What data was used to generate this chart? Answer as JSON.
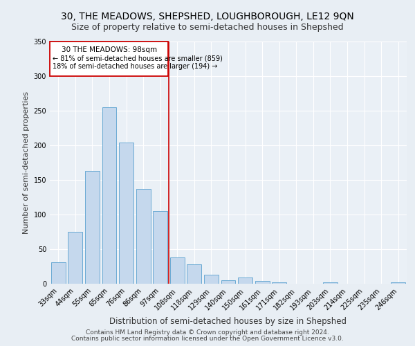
{
  "title": "30, THE MEADOWS, SHEPSHED, LOUGHBOROUGH, LE12 9QN",
  "subtitle": "Size of property relative to semi-detached houses in Shepshed",
  "xlabel": "Distribution of semi-detached houses by size in Shepshed",
  "ylabel": "Number of semi-detached properties",
  "categories": [
    "33sqm",
    "44sqm",
    "55sqm",
    "65sqm",
    "76sqm",
    "86sqm",
    "97sqm",
    "108sqm",
    "118sqm",
    "129sqm",
    "140sqm",
    "150sqm",
    "161sqm",
    "171sqm",
    "182sqm",
    "193sqm",
    "203sqm",
    "214sqm",
    "225sqm",
    "235sqm",
    "246sqm"
  ],
  "values": [
    31,
    75,
    163,
    255,
    204,
    137,
    105,
    38,
    28,
    13,
    5,
    9,
    4,
    2,
    0,
    0,
    2,
    0,
    0,
    0,
    2
  ],
  "bar_color": "#c5d8ed",
  "bar_edge_color": "#6aaad4",
  "vline_index": 6,
  "vline_color": "#cc0000",
  "property_label": "30 THE MEADOWS: 98sqm",
  "annotation_smaller": "← 81% of semi-detached houses are smaller (859)",
  "annotation_larger": "18% of semi-detached houses are larger (194) →",
  "annotation_box_color": "#cc0000",
  "ylim": [
    0,
    350
  ],
  "yticks": [
    0,
    50,
    100,
    150,
    200,
    250,
    300,
    350
  ],
  "footer_line1": "Contains HM Land Registry data © Crown copyright and database right 2024.",
  "footer_line2": "Contains public sector information licensed under the Open Government Licence v3.0.",
  "bg_color": "#e8eef4",
  "plot_bg_color": "#eaf0f6",
  "title_fontsize": 10,
  "subtitle_fontsize": 9,
  "axis_label_fontsize": 8,
  "tick_fontsize": 7,
  "annotation_fontsize": 7.5,
  "footer_fontsize": 6.5
}
